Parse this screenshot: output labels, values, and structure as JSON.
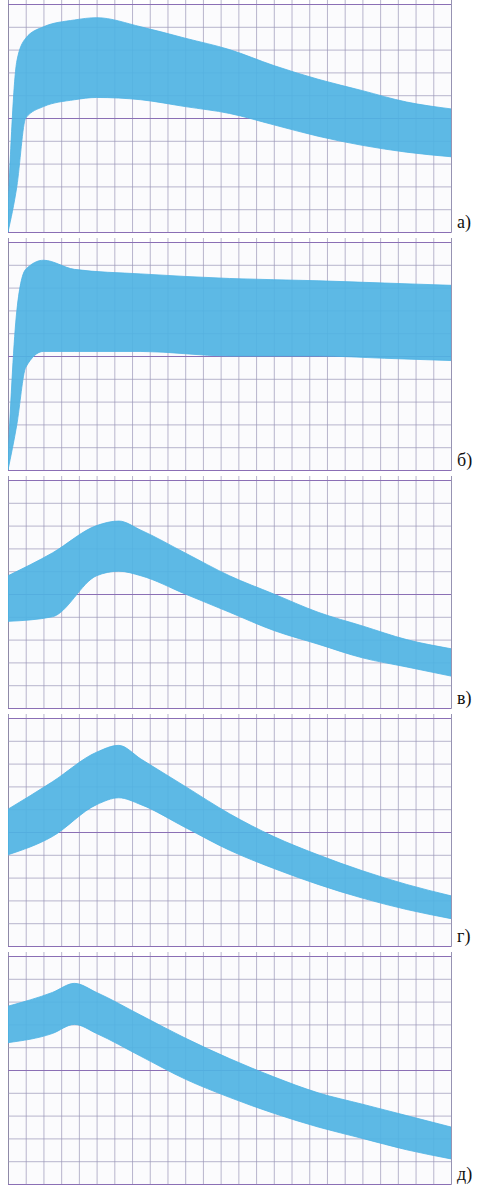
{
  "chart_data": [
    {
      "type": "area",
      "title": "а)",
      "grid": true,
      "tick_labels": false,
      "xlim": [
        0,
        100
      ],
      "ylim": [
        0,
        100
      ],
      "xticks": [
        0,
        4,
        8,
        12,
        16,
        20,
        24,
        28,
        32,
        36,
        40,
        44,
        48,
        52,
        56,
        60,
        64,
        68,
        72,
        76,
        80,
        84,
        88,
        92,
        96,
        100
      ],
      "yticks": [
        0,
        10,
        20,
        30,
        40,
        50,
        60,
        70,
        80,
        90,
        100
      ],
      "x": [
        0,
        2,
        4,
        8,
        15,
        20,
        30,
        40,
        50,
        60,
        70,
        80,
        90,
        100
      ],
      "series": [
        {
          "color": "#4fb3e3",
          "values": [
            10,
            75,
            85,
            90,
            93,
            94,
            90,
            85,
            80,
            73,
            67,
            62,
            57,
            54
          ],
          "lower": [
            0,
            20,
            50,
            55,
            58,
            59,
            58,
            55,
            52,
            47,
            42,
            38,
            35,
            33
          ]
        }
      ]
    },
    {
      "type": "area",
      "title": "б)",
      "grid": true,
      "tick_labels": false,
      "xlim": [
        0,
        100
      ],
      "ylim": [
        0,
        100
      ],
      "xticks": [
        0,
        4,
        8,
        12,
        16,
        20,
        24,
        28,
        32,
        36,
        40,
        44,
        48,
        52,
        56,
        60,
        64,
        68,
        72,
        76,
        80,
        84,
        88,
        92,
        96,
        100
      ],
      "yticks": [
        0,
        10,
        20,
        30,
        40,
        50,
        60,
        70,
        80,
        90,
        100
      ],
      "x": [
        0,
        2,
        4,
        8,
        15,
        30,
        50,
        70,
        85,
        100
      ],
      "series": [
        {
          "color": "#4fb3e3",
          "values": [
            5,
            70,
            88,
            92,
            88,
            86,
            84,
            83,
            82,
            81
          ],
          "lower": [
            0,
            20,
            45,
            52,
            52,
            52,
            50,
            50,
            49,
            48
          ]
        }
      ]
    },
    {
      "type": "area",
      "title": "в)",
      "grid": true,
      "tick_labels": false,
      "xlim": [
        0,
        100
      ],
      "ylim": [
        0,
        100
      ],
      "xticks": [
        0,
        4,
        8,
        12,
        16,
        20,
        24,
        28,
        32,
        36,
        40,
        44,
        48,
        52,
        56,
        60,
        64,
        68,
        72,
        76,
        80,
        84,
        88,
        92,
        96,
        100
      ],
      "yticks": [
        0,
        10,
        20,
        30,
        40,
        50,
        60,
        70,
        80,
        90,
        100
      ],
      "x": [
        0,
        10,
        20,
        25,
        30,
        40,
        50,
        60,
        70,
        80,
        90,
        100
      ],
      "series": [
        {
          "color": "#4fb3e3",
          "values": [
            58,
            68,
            80,
            82,
            78,
            68,
            58,
            50,
            42,
            36,
            30,
            26
          ],
          "lower": [
            38,
            40,
            58,
            60,
            58,
            50,
            42,
            34,
            28,
            22,
            18,
            14
          ]
        }
      ]
    },
    {
      "type": "area",
      "title": "г)",
      "grid": true,
      "tick_labels": false,
      "xlim": [
        0,
        100
      ],
      "ylim": [
        0,
        100
      ],
      "xticks": [
        0,
        4,
        8,
        12,
        16,
        20,
        24,
        28,
        32,
        36,
        40,
        44,
        48,
        52,
        56,
        60,
        64,
        68,
        72,
        76,
        80,
        84,
        88,
        92,
        96,
        100
      ],
      "yticks": [
        0,
        10,
        20,
        30,
        40,
        50,
        60,
        70,
        80,
        90,
        100
      ],
      "x": [
        0,
        10,
        20,
        25,
        30,
        40,
        50,
        60,
        70,
        80,
        90,
        100
      ],
      "series": [
        {
          "color": "#4fb3e3",
          "values": [
            60,
            72,
            85,
            88,
            82,
            70,
            58,
            48,
            40,
            33,
            27,
            22
          ],
          "lower": [
            40,
            48,
            62,
            65,
            62,
            52,
            42,
            34,
            27,
            21,
            16,
            12
          ]
        }
      ]
    },
    {
      "type": "area",
      "title": "д)",
      "grid": true,
      "tick_labels": false,
      "xlim": [
        0,
        100
      ],
      "ylim": [
        0,
        100
      ],
      "xticks": [
        0,
        4,
        8,
        12,
        16,
        20,
        24,
        28,
        32,
        36,
        40,
        44,
        48,
        52,
        56,
        60,
        64,
        68,
        72,
        76,
        80,
        84,
        88,
        92,
        96,
        100
      ],
      "yticks": [
        0,
        10,
        20,
        30,
        40,
        50,
        60,
        70,
        80,
        90,
        100
      ],
      "x": [
        0,
        10,
        15,
        20,
        30,
        40,
        50,
        60,
        70,
        80,
        90,
        100
      ],
      "series": [
        {
          "color": "#4fb3e3",
          "values": [
            78,
            84,
            88,
            84,
            74,
            64,
            55,
            47,
            40,
            35,
            30,
            25
          ],
          "lower": [
            62,
            66,
            70,
            66,
            56,
            46,
            38,
            31,
            25,
            20,
            15,
            11
          ]
        }
      ]
    }
  ]
}
